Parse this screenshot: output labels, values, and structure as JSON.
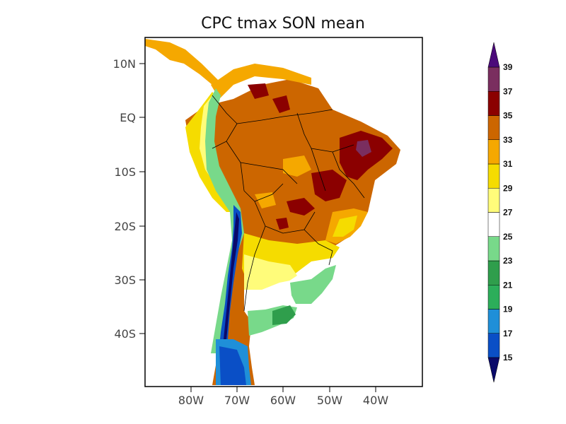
{
  "title": "CPC tmax SON  mean",
  "lat_labels": [
    "10N",
    "EQ",
    "10S",
    "20S",
    "30S",
    "40S"
  ],
  "lon_labels": [
    "80W",
    "70W",
    "60W",
    "50W",
    "40W"
  ],
  "colorbar": {
    "levels": [
      "15",
      "17",
      "19",
      "21",
      "23",
      "25",
      "27",
      "29",
      "31",
      "33",
      "35",
      "37",
      "39"
    ],
    "colors": [
      "#0a4fc6",
      "#1f8fd8",
      "#2cae5a",
      "#2f9e4c",
      "#78d98a",
      "#ffffff",
      "#fffc7a",
      "#f5dc00",
      "#f5a800",
      "#cc6600",
      "#8b0000",
      "#7a2e5f",
      "#9b72d8"
    ],
    "under_color": "#0a0a6a",
    "over_color": "#4b0a7a"
  }
}
